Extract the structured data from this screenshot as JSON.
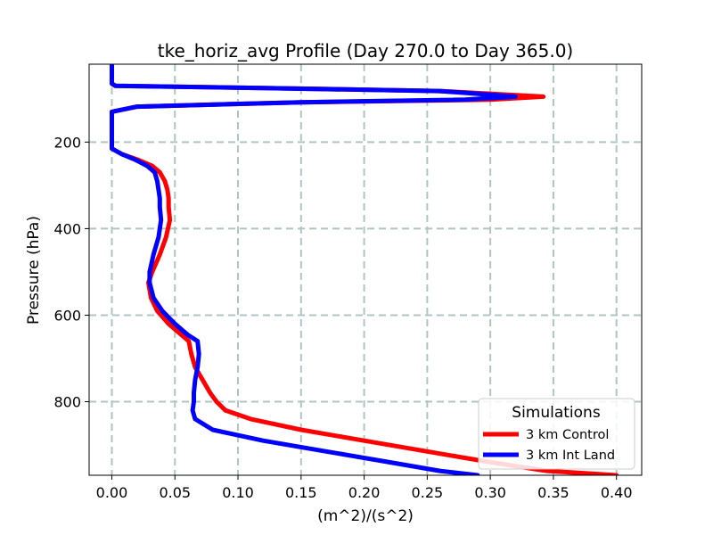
{
  "chart_data": {
    "type": "line",
    "title": "tke_horiz_avg Profile (Day 270.0 to Day 365.0)",
    "xlabel": "(m^2)/(s^2)",
    "ylabel": "Pressure (hPa)",
    "xlim": [
      -0.018,
      0.42
    ],
    "ylim": [
      970,
      20
    ],
    "y_inverted": true,
    "grid": true,
    "x_ticks": [
      "0.00",
      "0.05",
      "0.10",
      "0.15",
      "0.20",
      "0.25",
      "0.30",
      "0.35",
      "0.40"
    ],
    "y_ticks": [
      "200",
      "400",
      "600",
      "800"
    ],
    "legend": {
      "title": "Simulations",
      "position": "lower right"
    },
    "series": [
      {
        "name": "3 km Control",
        "color": "#ff0000",
        "x": [
          0.0,
          0.0,
          0.0,
          0.003,
          0.12,
          0.26,
          0.342,
          0.3,
          0.15,
          0.02,
          0.0,
          0.0,
          0.0,
          0.0,
          0.0,
          0.008,
          0.02,
          0.032,
          0.038,
          0.042,
          0.044,
          0.045,
          0.045,
          0.046,
          0.043,
          0.038,
          0.032,
          0.029,
          0.031,
          0.036,
          0.045,
          0.055,
          0.061,
          0.063,
          0.066,
          0.072,
          0.078,
          0.083,
          0.09,
          0.11,
          0.15,
          0.2,
          0.25,
          0.3,
          0.345,
          0.4
        ],
        "y": [
          20,
          50,
          65,
          70,
          75,
          82,
          95,
          102,
          108,
          118,
          130,
          150,
          180,
          200,
          215,
          228,
          240,
          255,
          270,
          290,
          310,
          330,
          350,
          380,
          420,
          460,
          500,
          525,
          560,
          590,
          620,
          645,
          660,
          690,
          720,
          750,
          780,
          800,
          820,
          840,
          865,
          890,
          915,
          940,
          960,
          970
        ]
      },
      {
        "name": "3 km Int Land",
        "color": "#0000ff",
        "x": [
          0.0,
          0.0,
          0.0,
          0.003,
          0.12,
          0.26,
          0.32,
          0.28,
          0.15,
          0.02,
          0.0,
          0.0,
          0.0,
          0.0,
          0.0,
          0.008,
          0.018,
          0.028,
          0.034,
          0.036,
          0.037,
          0.038,
          0.038,
          0.039,
          0.037,
          0.033,
          0.03,
          0.03,
          0.033,
          0.04,
          0.05,
          0.06,
          0.068,
          0.069,
          0.068,
          0.066,
          0.065,
          0.065,
          0.064,
          0.066,
          0.08,
          0.12,
          0.17,
          0.22,
          0.26,
          0.29
        ],
        "y": [
          20,
          50,
          65,
          70,
          75,
          82,
          95,
          102,
          108,
          118,
          130,
          150,
          180,
          200,
          215,
          228,
          240,
          255,
          270,
          290,
          310,
          330,
          350,
          380,
          420,
          460,
          500,
          525,
          560,
          590,
          620,
          645,
          660,
          690,
          720,
          750,
          780,
          800,
          820,
          840,
          865,
          890,
          915,
          940,
          960,
          970
        ]
      }
    ]
  }
}
